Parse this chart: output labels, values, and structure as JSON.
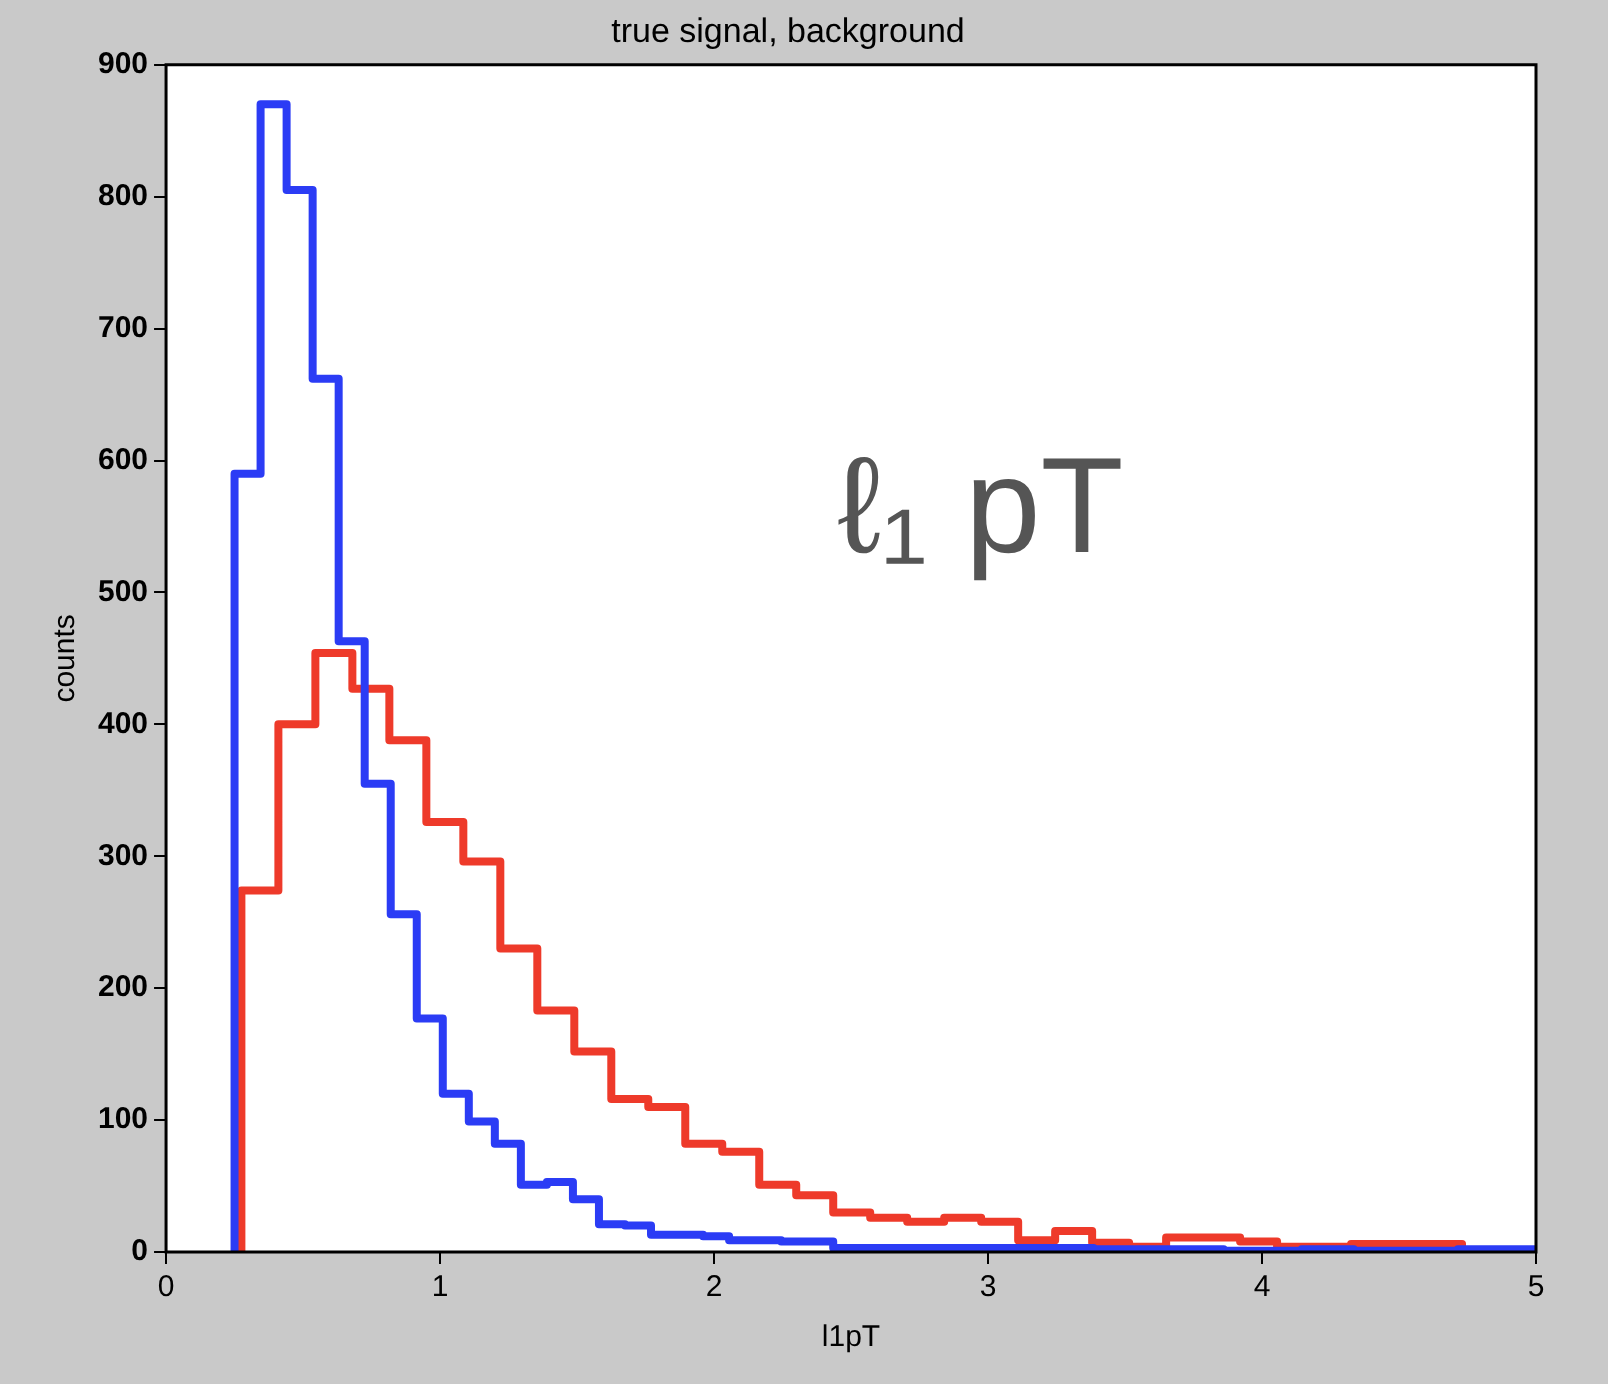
{
  "chart_data": {
    "type": "step",
    "title": "true signal, background",
    "xlabel": "l1pT",
    "ylabel": "counts",
    "annotations": [
      "ℓ₁ pT"
    ],
    "xlim": [
      0,
      5
    ],
    "xticks": [
      0,
      1,
      2,
      3,
      4,
      5
    ],
    "ylim": [
      0,
      900
    ],
    "yticks": [
      0,
      100,
      200,
      300,
      400,
      500,
      600,
      700,
      800,
      900
    ],
    "grid": false,
    "legend": false,
    "series": [
      {
        "color": "#2b3cf5",
        "x": [
          0.25,
          0.25,
          0.345,
          0.44,
          0.535,
          0.63,
          0.725,
          0.82,
          0.915,
          1.01,
          1.105,
          1.2,
          1.295,
          1.39,
          1.485,
          1.58,
          1.675,
          1.77,
          1.865,
          1.96,
          2.055,
          2.15,
          2.245,
          2.34,
          2.435,
          2.53,
          2.625,
          2.72,
          2.815,
          2.91,
          3.005,
          3.1,
          3.195,
          3.29,
          3.385,
          3.48,
          3.575,
          3.67,
          3.765,
          3.86,
          3.955,
          4.05,
          4.145,
          4.24,
          4.335,
          4.43,
          4.525,
          4.62,
          4.715,
          4.81,
          4.905,
          5.0
        ],
        "values": [
          0,
          174,
          590,
          870,
          805,
          662,
          463,
          355,
          256,
          177,
          120,
          99,
          82,
          51,
          53,
          40,
          21,
          20,
          13,
          13,
          12,
          9,
          9,
          8,
          8,
          3,
          3,
          3,
          3,
          3,
          3,
          3,
          3,
          3,
          3,
          2,
          2,
          2,
          2,
          2,
          1,
          1,
          1,
          2,
          2,
          1,
          1,
          1,
          1,
          2,
          2,
          2
        ]
      },
      {
        "color": "#ee3a2a",
        "x": [
          0.275,
          0.275,
          0.41,
          0.545,
          0.68,
          0.815,
          0.95,
          1.085,
          1.22,
          1.355,
          1.49,
          1.625,
          1.76,
          1.895,
          2.03,
          2.165,
          2.3,
          2.435,
          2.57,
          2.705,
          2.84,
          2.975,
          3.11,
          3.245,
          3.38,
          3.515,
          3.65,
          3.785,
          3.92,
          4.055,
          4.19,
          4.325,
          4.46,
          4.595,
          4.73,
          4.73
        ],
        "values": [
          0,
          99,
          274,
          400,
          454,
          427,
          388,
          326,
          296,
          230,
          183,
          152,
          116,
          110,
          82,
          76,
          51,
          43,
          30,
          26,
          23,
          26,
          23,
          9,
          16,
          7,
          4,
          11,
          11,
          8,
          4,
          4,
          6,
          6,
          6,
          0
        ]
      }
    ]
  }
}
